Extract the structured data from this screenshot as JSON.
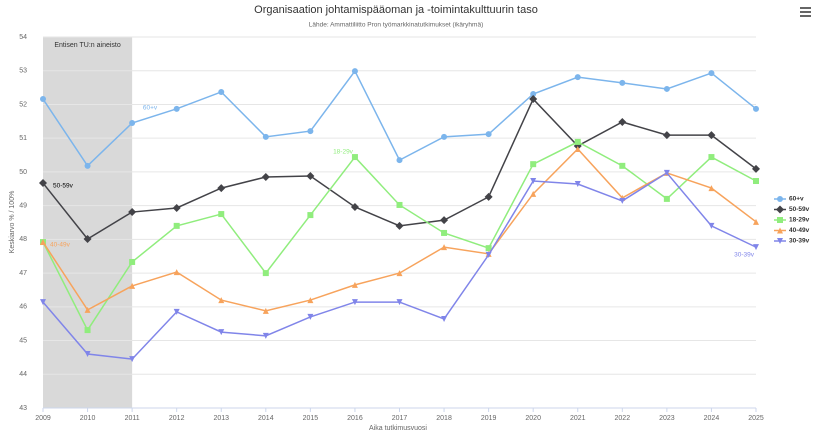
{
  "chart_data": {
    "type": "line",
    "title": "Organisaation johtamispääoman ja -toimintakulttuurin taso",
    "subtitle": "Lähde: Ammattiliitto Pron työmarkkinatutkimukset (ikäryhmä)",
    "x_label": "Aika tutkimusvuosi",
    "y_label": "Keskiarvo % / 100%",
    "band": {
      "from": 2009,
      "to": 2011,
      "label": "Entisen TU:n aineisto",
      "color": "#d9d9d9"
    },
    "x": [
      2009,
      2010,
      2011,
      2012,
      2013,
      2014,
      2015,
      2016,
      2017,
      2018,
      2019,
      2020,
      2021,
      2022,
      2023,
      2024,
      2025
    ],
    "xlim": [
      2009,
      2025
    ],
    "xticks": [
      2009,
      2010,
      2011,
      2012,
      2013,
      2014,
      2015,
      2016,
      2017,
      2018,
      2019,
      2020,
      2021,
      2022,
      2023,
      2024,
      2025
    ],
    "ylim": [
      43,
      54
    ],
    "yticks": [
      43,
      44,
      45,
      46,
      47,
      48,
      49,
      50,
      51,
      52,
      53,
      54
    ],
    "grid": true,
    "legend": "right",
    "series": [
      {
        "name": "60+v",
        "color": "#7cb5ec",
        "symbol": "circle",
        "values": [
          52.16,
          50.18,
          51.45,
          51.87,
          52.37,
          51.04,
          51.21,
          52.99,
          50.35,
          51.04,
          51.12,
          52.31,
          52.81,
          52.64,
          52.46,
          52.93,
          51.87
        ]
      },
      {
        "name": "50-59v",
        "color": "#434348",
        "symbol": "diamond",
        "values": [
          49.67,
          48.01,
          48.81,
          48.93,
          49.52,
          49.85,
          49.88,
          48.96,
          48.4,
          48.57,
          49.26,
          52.16,
          50.77,
          51.48,
          51.09,
          51.09,
          50.09
        ]
      },
      {
        "name": "18-29v",
        "color": "#90ed7d",
        "symbol": "square",
        "values": [
          47.92,
          45.31,
          47.33,
          48.4,
          48.75,
          47.0,
          48.72,
          50.44,
          49.02,
          48.19,
          47.74,
          50.23,
          50.89,
          50.18,
          49.2,
          50.44,
          49.73
        ]
      },
      {
        "name": "40-49v",
        "color": "#f7a35c",
        "symbol": "triangle",
        "values": [
          47.92,
          45.91,
          46.62,
          47.03,
          46.2,
          45.88,
          46.2,
          46.65,
          47.0,
          47.77,
          47.57,
          49.35,
          50.68,
          49.23,
          49.97,
          49.52,
          48.52
        ]
      },
      {
        "name": "30-39v",
        "color": "#8085e9",
        "symbol": "triangle-down",
        "values": [
          46.14,
          44.6,
          44.45,
          45.85,
          45.25,
          45.14,
          45.7,
          46.14,
          46.14,
          45.64,
          47.54,
          49.73,
          49.64,
          49.14,
          49.97,
          48.4,
          47.77
        ]
      }
    ]
  }
}
